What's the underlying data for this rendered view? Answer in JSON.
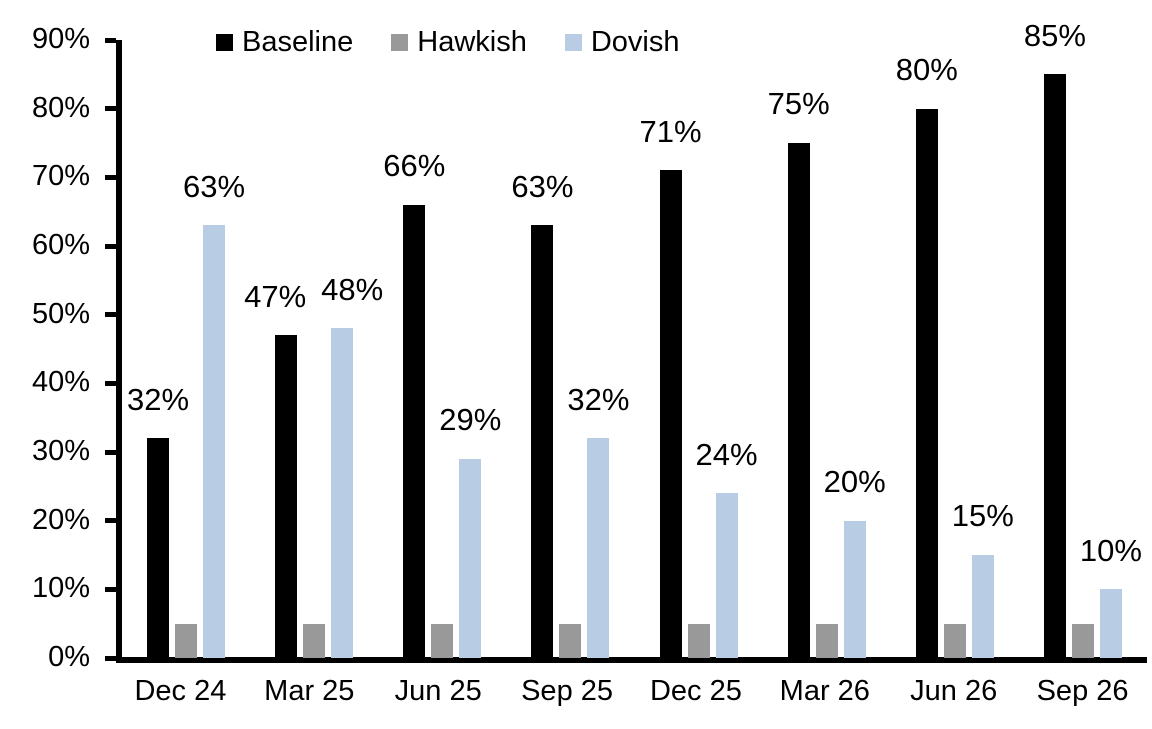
{
  "chart_data": {
    "type": "bar",
    "title": "",
    "xlabel": "",
    "ylabel": "",
    "categories": [
      "Dec 24",
      "Mar 25",
      "Jun 25",
      "Sep 25",
      "Dec 25",
      "Mar 26",
      "Jun 26",
      "Sep 26"
    ],
    "series": [
      {
        "name": "Baseline",
        "color": "#000000",
        "values": [
          32,
          47,
          66,
          63,
          71,
          75,
          80,
          85
        ],
        "data_labels": [
          "32%",
          "47%",
          "66%",
          "63%",
          "71%",
          "75%",
          "80%",
          "85%"
        ],
        "show_labels": true,
        "label_dx": [
          0,
          -11,
          0,
          0,
          0,
          0,
          0,
          0
        ]
      },
      {
        "name": "Hawkish",
        "color": "#999999",
        "values": [
          5,
          5,
          5,
          5,
          5,
          5,
          5,
          5
        ],
        "data_labels": [],
        "show_labels": false,
        "label_dx": [
          0,
          0,
          0,
          0,
          0,
          0,
          0,
          0
        ]
      },
      {
        "name": "Dovish",
        "color": "#B8CCE4",
        "values": [
          63,
          48,
          29,
          32,
          24,
          20,
          15,
          10
        ],
        "data_labels": [
          "63%",
          "48%",
          "29%",
          "32%",
          "24%",
          "20%",
          "15%",
          "10%"
        ],
        "show_labels": true,
        "label_dx": [
          0,
          10,
          0,
          0,
          0,
          0,
          0,
          0
        ]
      }
    ],
    "ylim": [
      0,
      90
    ],
    "ytick_labels": [
      "0%",
      "10%",
      "20%",
      "30%",
      "40%",
      "50%",
      "60%",
      "70%",
      "80%",
      "90%"
    ],
    "grid": false,
    "legend_position": "top-inside",
    "axis_color": "#000000",
    "background_color": "#ffffff"
  }
}
